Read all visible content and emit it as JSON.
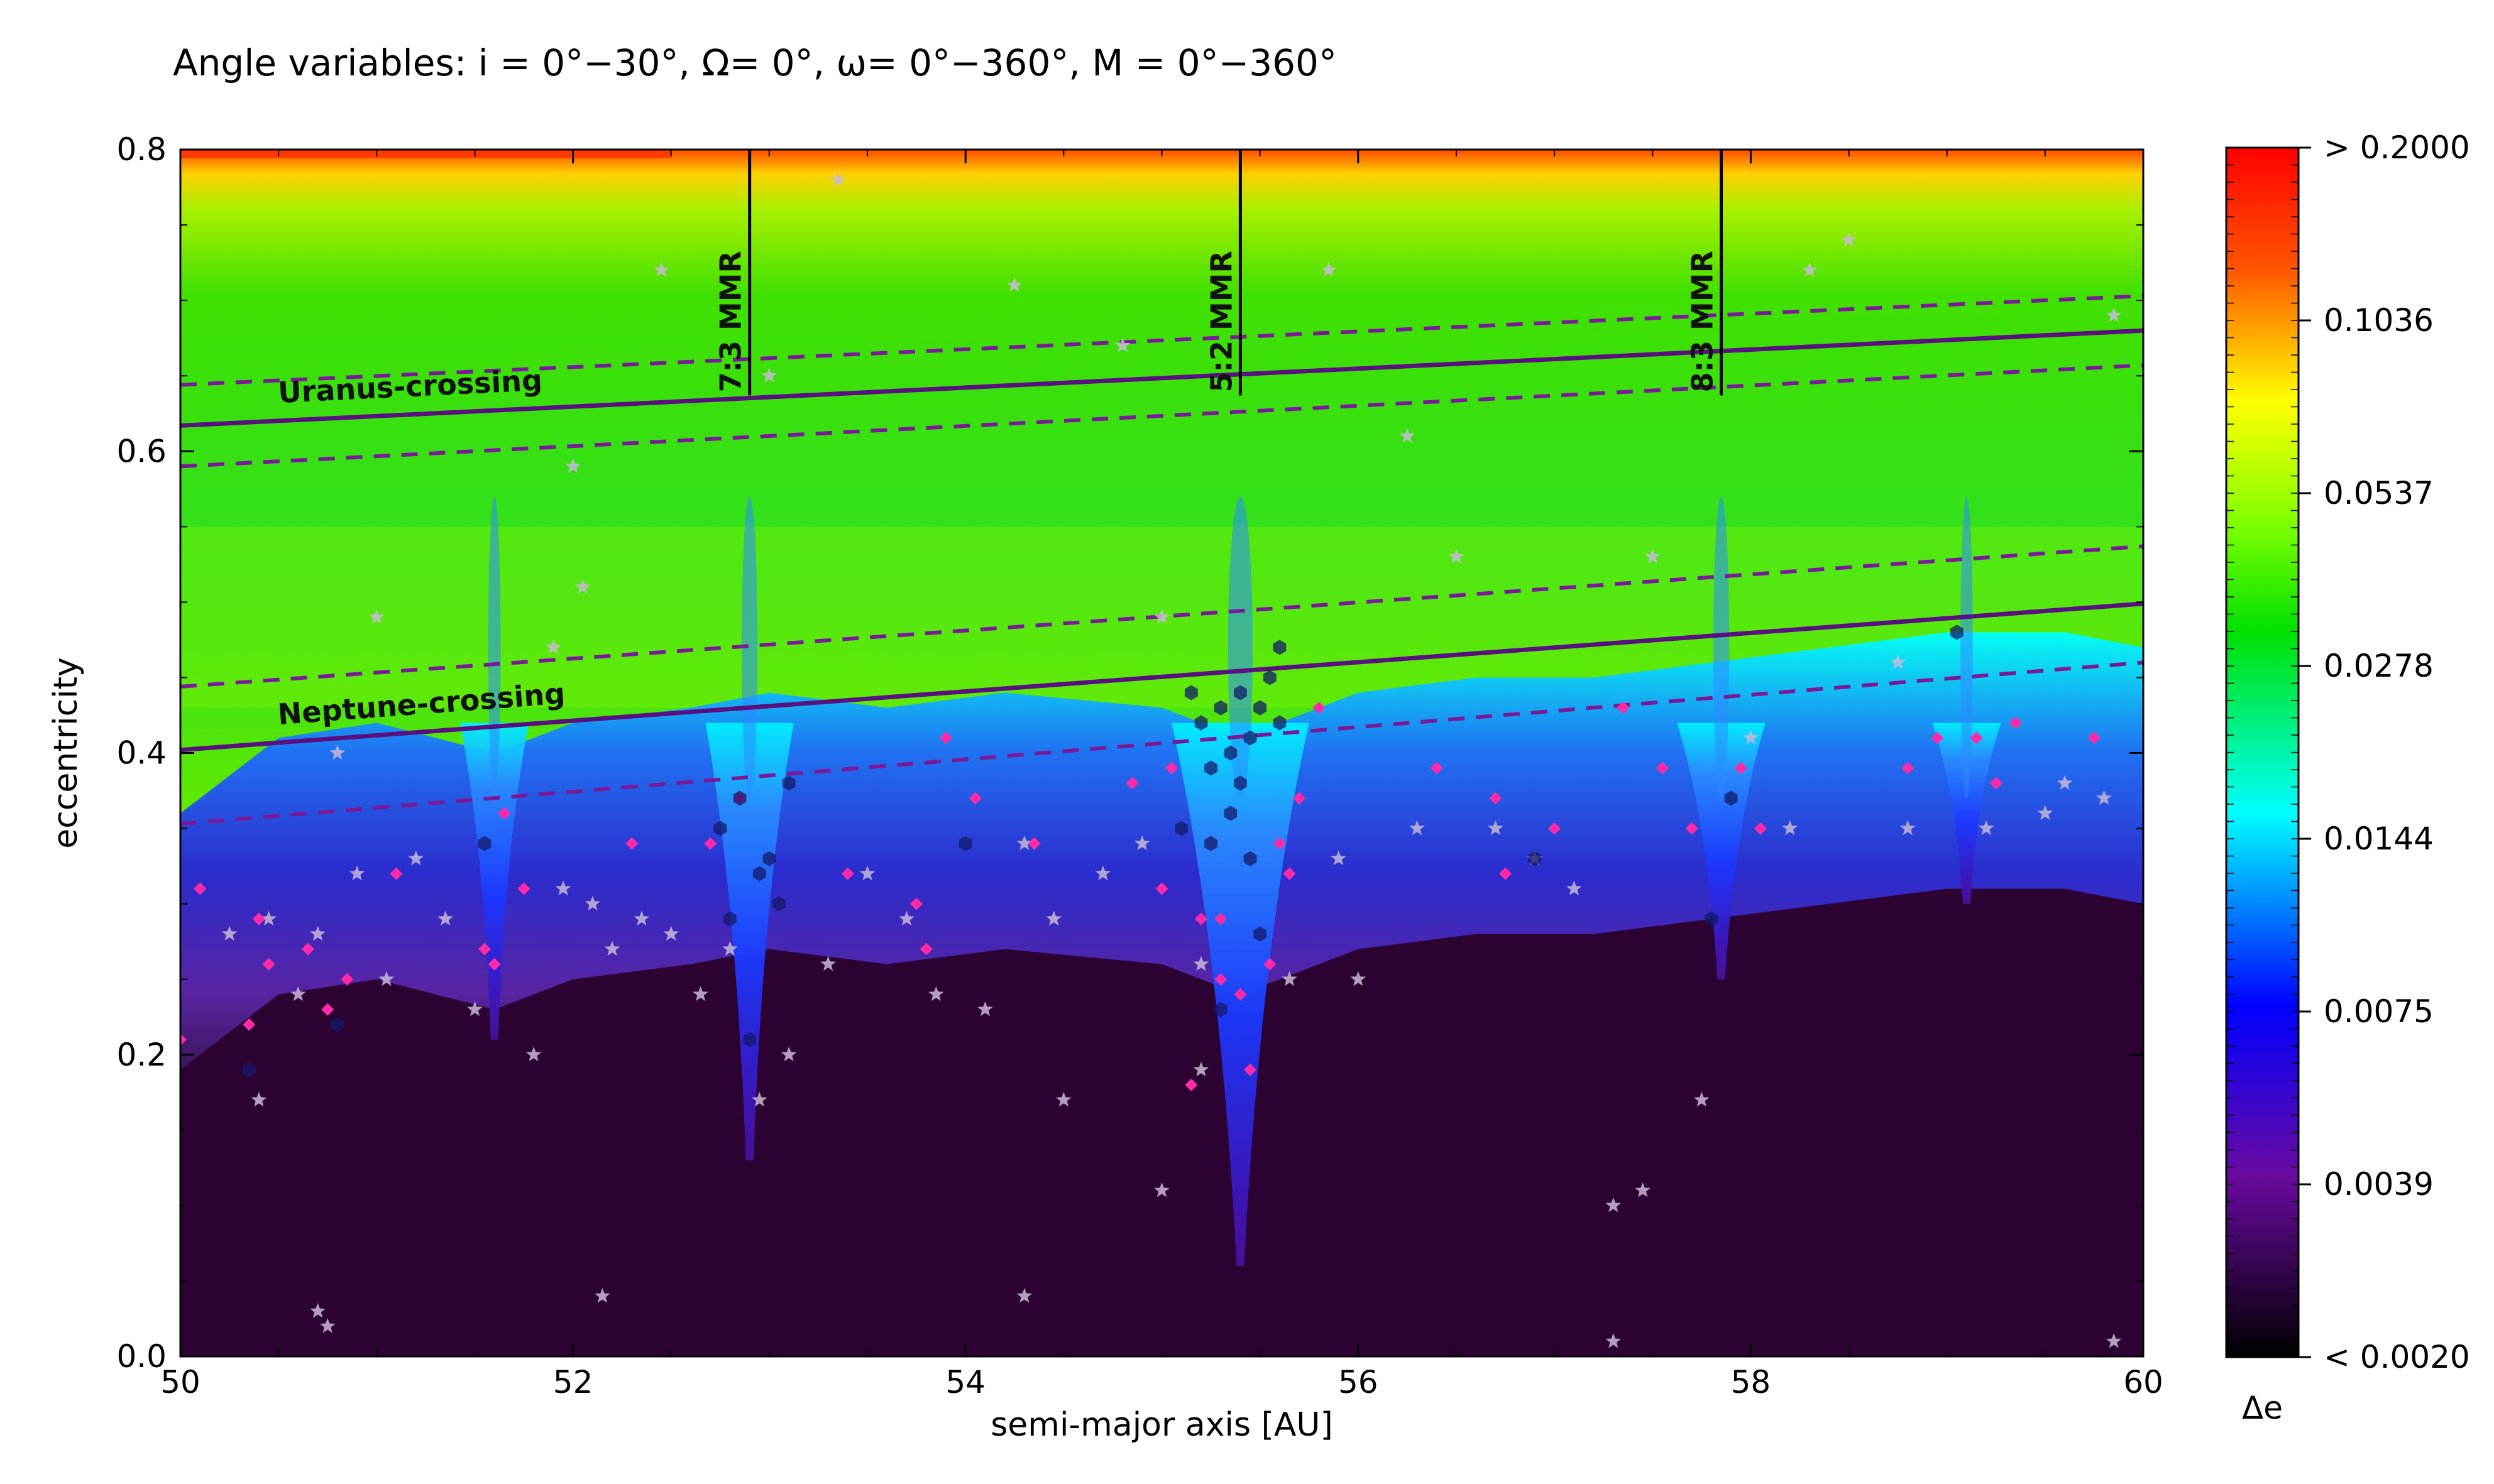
{
  "title": "Angle variables: i = 0°−30°, Ω= 0°, ω= 0°−360°, M = 0°−360°",
  "chart_data": {
    "type": "heatmap",
    "title": "Angle variables: i = 0°−30°, Ω= 0°, ω= 0°−360°, M = 0°−360°",
    "xlabel": "semi-major axis [AU]",
    "ylabel": "eccentricity",
    "xlim": [
      50,
      60
    ],
    "ylim": [
      0.0,
      0.8
    ],
    "x_ticks": [
      "50",
      "52",
      "54",
      "56",
      "58",
      "60"
    ],
    "y_ticks": [
      "0.0",
      "0.2",
      "0.4",
      "0.6",
      "0.8"
    ],
    "colorbar": {
      "label": "Δe",
      "scale": "log",
      "ticks": [
        "> 0.2000",
        "0.1036",
        "0.0537",
        "0.0278",
        "0.0144",
        "0.0075",
        "0.0039",
        "< 0.0020"
      ],
      "colors": [
        "#ff0000",
        "#ff8000",
        "#ffff00",
        "#00e000",
        "#00ffff",
        "#0000ff",
        "#6a0aa0",
        "#2a0030"
      ]
    },
    "resonances": [
      {
        "label": "7:3 MMR",
        "a": 52.9,
        "e_from": 0.637,
        "e_to": 0.8
      },
      {
        "label": "5:2 MMR",
        "a": 55.4,
        "e_from": 0.637,
        "e_to": 0.8
      },
      {
        "label": "8:3 MMR",
        "a": 57.85,
        "e_from": 0.637,
        "e_to": 0.8
      }
    ],
    "crossing_lines": [
      {
        "label": "Uranus-crossing",
        "solid": [
          [
            50,
            0.617
          ],
          [
            60,
            0.68
          ]
        ],
        "dashed_upper": [
          [
            50,
            0.644
          ],
          [
            60,
            0.703
          ]
        ],
        "dashed_lower": [
          [
            50,
            0.59
          ],
          [
            60,
            0.657
          ]
        ]
      },
      {
        "label": "Neptune-crossing",
        "solid": [
          [
            50,
            0.402
          ],
          [
            60,
            0.499
          ]
        ],
        "dashed_upper": [
          [
            50,
            0.444
          ],
          [
            60,
            0.537
          ]
        ],
        "dashed_lower": [
          [
            50,
            0.353
          ],
          [
            60,
            0.46
          ]
        ]
      }
    ],
    "zone_boundaries": {
      "stable_region_top": [
        [
          50,
          0.26
        ],
        [
          50.5,
          0.31
        ],
        [
          51,
          0.32
        ],
        [
          51.6,
          0.3
        ],
        [
          52,
          0.32
        ],
        [
          52.6,
          0.33
        ],
        [
          53,
          0.34
        ],
        [
          53.6,
          0.33
        ],
        [
          54.2,
          0.34
        ],
        [
          55,
          0.33
        ],
        [
          55.4,
          0.31
        ],
        [
          56,
          0.34
        ],
        [
          56.6,
          0.35
        ],
        [
          57.2,
          0.35
        ],
        [
          57.8,
          0.36
        ],
        [
          58.4,
          0.37
        ],
        [
          59,
          0.38
        ],
        [
          59.6,
          0.38
        ],
        [
          60,
          0.37
        ]
      ],
      "resonance_dips": [
        {
          "a": 51.6,
          "e_min": 0.21,
          "width": 0.35
        },
        {
          "a": 52.9,
          "e_min": 0.13,
          "width": 0.45
        },
        {
          "a": 55.4,
          "e_min": 0.06,
          "width": 0.7
        },
        {
          "a": 57.85,
          "e_min": 0.25,
          "width": 0.45
        },
        {
          "a": 59.1,
          "e_min": 0.3,
          "width": 0.35
        }
      ]
    },
    "objects": {
      "stars": [
        [
          50.25,
          0.28
        ],
        [
          50.45,
          0.29
        ],
        [
          50.6,
          0.24
        ],
        [
          50.7,
          0.28
        ],
        [
          50.9,
          0.32
        ],
        [
          51.05,
          0.25
        ],
        [
          51.2,
          0.33
        ],
        [
          51.35,
          0.29
        ],
        [
          51.5,
          0.23
        ],
        [
          51.8,
          0.2
        ],
        [
          51.95,
          0.31
        ],
        [
          52.1,
          0.3
        ],
        [
          52.2,
          0.27
        ],
        [
          52.35,
          0.29
        ],
        [
          52.5,
          0.28
        ],
        [
          52.65,
          0.24
        ],
        [
          52.8,
          0.27
        ],
        [
          52.95,
          0.17
        ],
        [
          53.1,
          0.2
        ],
        [
          53.3,
          0.26
        ],
        [
          53.5,
          0.32
        ],
        [
          53.7,
          0.29
        ],
        [
          53.85,
          0.24
        ],
        [
          54.1,
          0.23
        ],
        [
          54.3,
          0.34
        ],
        [
          54.45,
          0.29
        ],
        [
          54.5,
          0.17
        ],
        [
          54.7,
          0.32
        ],
        [
          54.9,
          0.34
        ],
        [
          55.0,
          0.11
        ],
        [
          55.2,
          0.19
        ],
        [
          55.65,
          0.25
        ],
        [
          55.9,
          0.33
        ],
        [
          56.0,
          0.25
        ],
        [
          56.3,
          0.35
        ],
        [
          56.5,
          0.53
        ],
        [
          56.7,
          0.35
        ],
        [
          56.9,
          0.33
        ],
        [
          57.1,
          0.31
        ],
        [
          57.3,
          0.1
        ],
        [
          57.45,
          0.11
        ],
        [
          57.5,
          0.53
        ],
        [
          57.75,
          0.17
        ],
        [
          58.0,
          0.41
        ],
        [
          58.2,
          0.35
        ],
        [
          58.3,
          0.72
        ],
        [
          58.5,
          0.74
        ],
        [
          58.8,
          0.35
        ],
        [
          59.2,
          0.35
        ],
        [
          59.5,
          0.36
        ],
        [
          59.6,
          0.38
        ],
        [
          59.8,
          0.37
        ],
        [
          59.85,
          0.01
        ],
        [
          51.0,
          0.49
        ],
        [
          52.0,
          0.59
        ],
        [
          52.05,
          0.51
        ],
        [
          52.45,
          0.72
        ],
        [
          53.0,
          0.65
        ],
        [
          54.25,
          0.71
        ],
        [
          54.8,
          0.67
        ],
        [
          55.0,
          0.49
        ],
        [
          55.85,
          0.72
        ],
        [
          56.25,
          0.61
        ],
        [
          51.9,
          0.47
        ],
        [
          50.7,
          0.03
        ],
        [
          50.75,
          0.02
        ],
        [
          52.15,
          0.04
        ],
        [
          54.3,
          0.04
        ],
        [
          57.3,
          0.01
        ],
        [
          50.4,
          0.17
        ],
        [
          50.8,
          0.4
        ],
        [
          53.35,
          0.78
        ],
        [
          55.2,
          0.26
        ],
        [
          58.75,
          0.46
        ],
        [
          59.85,
          0.69
        ]
      ],
      "diamonds": [
        [
          50.0,
          0.21
        ],
        [
          50.1,
          0.31
        ],
        [
          50.4,
          0.29
        ],
        [
          50.35,
          0.22
        ],
        [
          50.45,
          0.26
        ],
        [
          50.65,
          0.27
        ],
        [
          50.75,
          0.23
        ],
        [
          50.85,
          0.25
        ],
        [
          51.1,
          0.32
        ],
        [
          51.55,
          0.27
        ],
        [
          51.6,
          0.26
        ],
        [
          51.65,
          0.36
        ],
        [
          51.75,
          0.31
        ],
        [
          52.3,
          0.34
        ],
        [
          52.7,
          0.34
        ],
        [
          52.85,
          0.37
        ],
        [
          53.4,
          0.32
        ],
        [
          53.75,
          0.3
        ],
        [
          53.8,
          0.27
        ],
        [
          53.9,
          0.41
        ],
        [
          54.05,
          0.37
        ],
        [
          54.35,
          0.34
        ],
        [
          54.85,
          0.38
        ],
        [
          55.0,
          0.31
        ],
        [
          55.05,
          0.39
        ],
        [
          55.2,
          0.29
        ],
        [
          55.3,
          0.29
        ],
        [
          55.3,
          0.25
        ],
        [
          55.4,
          0.24
        ],
        [
          55.55,
          0.26
        ],
        [
          55.6,
          0.34
        ],
        [
          55.65,
          0.32
        ],
        [
          55.7,
          0.37
        ],
        [
          55.8,
          0.43
        ],
        [
          56.4,
          0.39
        ],
        [
          56.7,
          0.37
        ],
        [
          56.75,
          0.32
        ],
        [
          57.0,
          0.35
        ],
        [
          57.35,
          0.43
        ],
        [
          57.55,
          0.39
        ],
        [
          57.7,
          0.35
        ],
        [
          57.95,
          0.39
        ],
        [
          58.05,
          0.35
        ],
        [
          58.8,
          0.39
        ],
        [
          58.95,
          0.41
        ],
        [
          59.15,
          0.41
        ],
        [
          59.25,
          0.38
        ],
        [
          59.35,
          0.42
        ],
        [
          59.75,
          0.41
        ],
        [
          55.15,
          0.18
        ],
        [
          55.45,
          0.19
        ]
      ],
      "hexagons": [
        [
          50.35,
          0.19
        ],
        [
          50.8,
          0.22
        ],
        [
          51.55,
          0.34
        ],
        [
          52.75,
          0.35
        ],
        [
          52.8,
          0.29
        ],
        [
          52.85,
          0.37
        ],
        [
          52.95,
          0.32
        ],
        [
          53.0,
          0.33
        ],
        [
          53.05,
          0.3
        ],
        [
          53.1,
          0.38
        ],
        [
          52.9,
          0.21
        ],
        [
          54.0,
          0.34
        ],
        [
          55.1,
          0.35
        ],
        [
          55.15,
          0.44
        ],
        [
          55.2,
          0.42
        ],
        [
          55.25,
          0.39
        ],
        [
          55.3,
          0.43
        ],
        [
          55.35,
          0.4
        ],
        [
          55.4,
          0.44
        ],
        [
          55.45,
          0.41
        ],
        [
          55.5,
          0.43
        ],
        [
          55.55,
          0.45
        ],
        [
          55.6,
          0.47
        ],
        [
          55.35,
          0.36
        ],
        [
          55.4,
          0.38
        ],
        [
          55.45,
          0.33
        ],
        [
          55.25,
          0.34
        ],
        [
          55.3,
          0.23
        ],
        [
          55.5,
          0.28
        ],
        [
          55.6,
          0.42
        ],
        [
          56.9,
          0.33
        ],
        [
          57.8,
          0.29
        ],
        [
          57.9,
          0.37
        ],
        [
          59.05,
          0.48
        ]
      ]
    }
  }
}
